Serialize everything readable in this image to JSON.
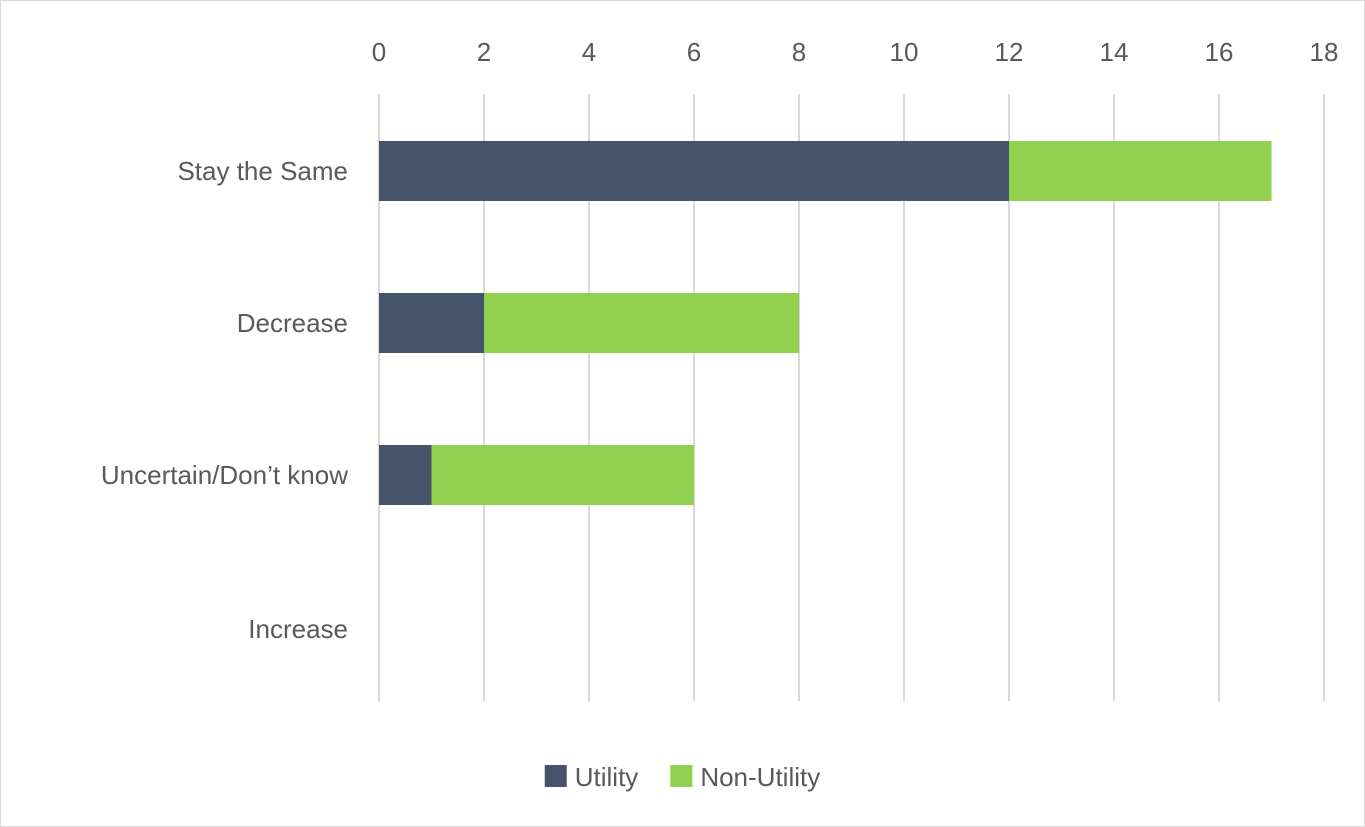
{
  "chart_data": {
    "type": "bar",
    "orientation": "horizontal",
    "stacked": true,
    "categories": [
      "Stay the Same",
      "Decrease",
      "Uncertain/Don’t know",
      "Increase"
    ],
    "series": [
      {
        "name": "Utility",
        "values": [
          12,
          2,
          1,
          0
        ],
        "color": "#44546a"
      },
      {
        "name": "Non-Utility",
        "values": [
          5,
          6,
          5,
          0
        ],
        "color": "#92d050"
      }
    ],
    "xlim": [
      0,
      18
    ],
    "x_ticks": [
      0,
      2,
      4,
      6,
      8,
      10,
      12,
      14,
      16,
      18
    ],
    "x_axis_position": "top",
    "grid": "vertical",
    "gridline_color": "#d9d9d9",
    "legend_position": "bottom"
  }
}
